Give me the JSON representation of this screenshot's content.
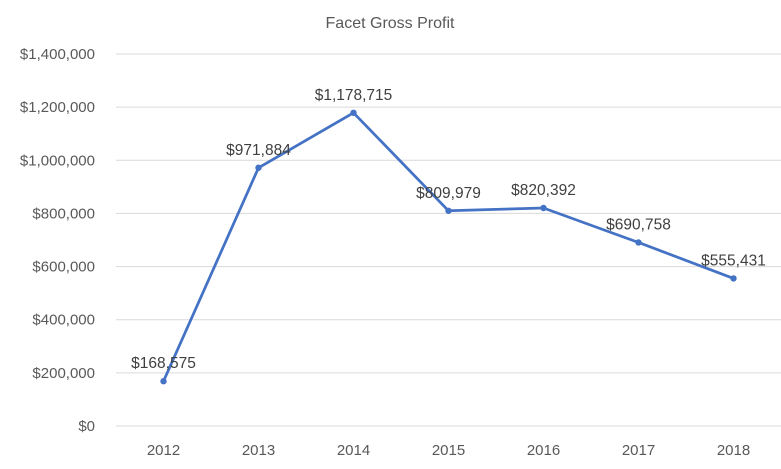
{
  "chart_data": {
    "type": "line",
    "title": "Facet Gross Profit",
    "xlabel": "",
    "ylabel": "",
    "categories": [
      "2012",
      "2013",
      "2014",
      "2015",
      "2016",
      "2017",
      "2018"
    ],
    "series": [
      {
        "values": [
          168575,
          971884,
          1178715,
          809979,
          820392,
          690758,
          555431
        ],
        "data_labels": [
          "$168,575",
          "$971,884",
          "$1,178,715",
          "$809,979",
          "$820,392",
          "$690,758",
          "$555,431"
        ],
        "color": "#4472c4"
      }
    ],
    "ylim": [
      0,
      1400000
    ],
    "yticks": [
      0,
      200000,
      400000,
      600000,
      800000,
      1000000,
      1200000,
      1400000
    ],
    "ytick_labels": [
      "$0",
      "$200,000",
      "$400,000",
      "$600,000",
      "$800,000",
      "$1,000,000",
      "$1,200,000",
      "$1,400,000"
    ],
    "grid": true,
    "legend": "none",
    "colors": {
      "line": "#4472c4",
      "gridline": "#d9d9d9",
      "text": "#595959"
    }
  }
}
